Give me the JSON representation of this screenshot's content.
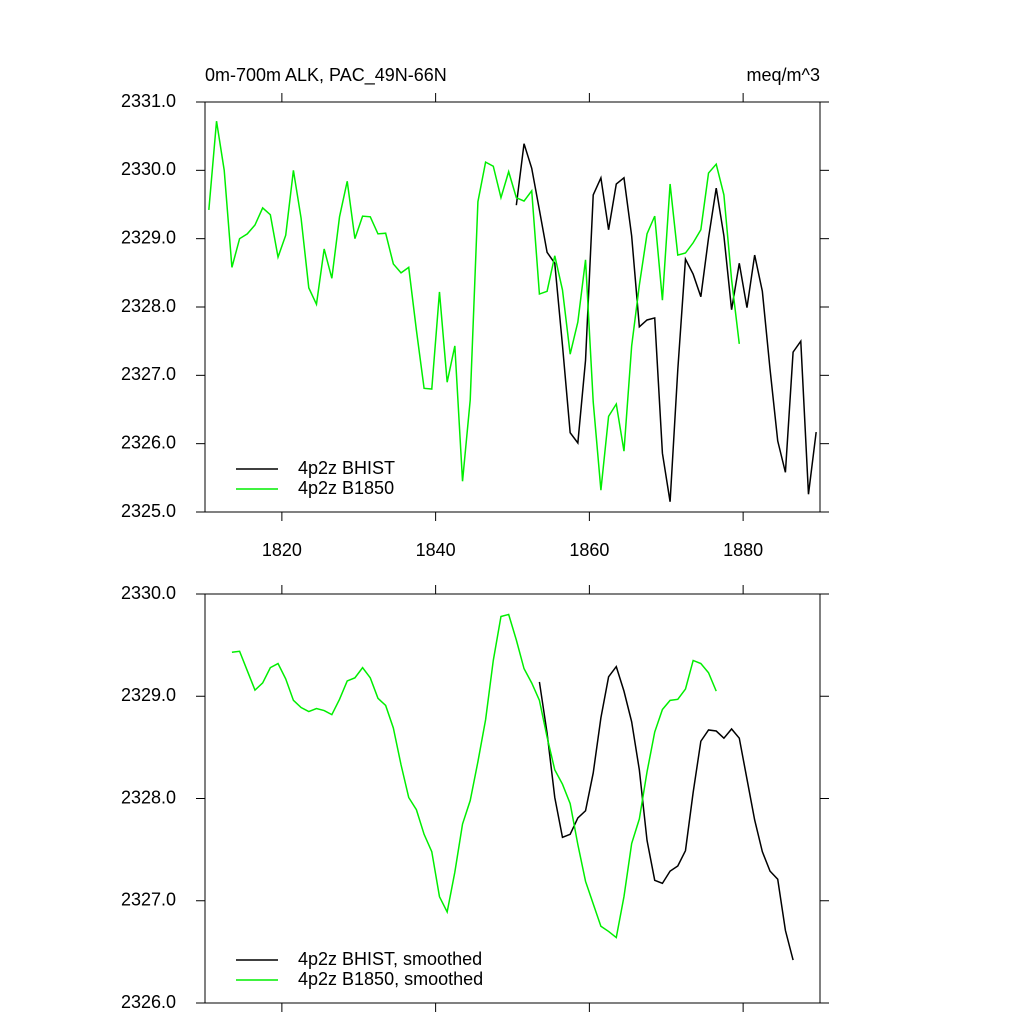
{
  "chart_data": [
    {
      "type": "line",
      "title": "0m-700m ALK, PAC_49N-66N",
      "unit_label": "meq/m^3",
      "xlim": [
        1810,
        1890
      ],
      "xticks": [
        1820,
        1840,
        1860,
        1880
      ],
      "ylim": [
        2325,
        2331
      ],
      "yticks": [
        {
          "value": 2325,
          "label": "2325.0"
        },
        {
          "value": 2326,
          "label": "2326.0"
        },
        {
          "value": 2327,
          "label": "2327.0"
        },
        {
          "value": 2328,
          "label": "2328.0"
        },
        {
          "value": 2329,
          "label": "2329.0"
        },
        {
          "value": 2330,
          "label": "2330.0"
        },
        {
          "value": 2331,
          "label": "2331.0"
        }
      ],
      "legend_position": "lower left",
      "series": [
        {
          "name": "4p2z BHIST",
          "color": "#000000",
          "x": [
            1850.5,
            1851.5,
            1852.5,
            1853.5,
            1854.5,
            1855.5,
            1856.5,
            1857.5,
            1858.5,
            1859.5,
            1860.5,
            1861.5,
            1862.5,
            1863.5,
            1864.5,
            1865.5,
            1866.5,
            1867.5,
            1868.5,
            1869.5,
            1870.5,
            1871.5,
            1872.5,
            1873.5,
            1874.5,
            1875.5,
            1876.5,
            1877.5,
            1878.5,
            1879.5,
            1880.5,
            1881.5,
            1882.5,
            1883.5,
            1884.5,
            1885.5,
            1886.5,
            1887.5,
            1888.5,
            1889.5
          ],
          "values": [
            2329.49,
            2330.39,
            2330.03,
            2329.42,
            2328.8,
            2328.64,
            2327.44,
            2326.16,
            2326.01,
            2327.22,
            2329.64,
            2329.89,
            2329.13,
            2329.8,
            2329.89,
            2329.04,
            2327.71,
            2327.81,
            2327.84,
            2325.86,
            2325.15,
            2327.08,
            2328.7,
            2328.48,
            2328.15,
            2329.01,
            2329.74,
            2329.04,
            2327.96,
            2328.64,
            2327.99,
            2328.76,
            2328.23,
            2327.09,
            2326.04,
            2325.58,
            2327.34,
            2327.5,
            2325.26,
            2326.17
          ]
        },
        {
          "name": "4p2z B1850",
          "color": "#00ee00",
          "x": [
            1810.5,
            1811.5,
            1812.5,
            1813.5,
            1814.5,
            1815.5,
            1816.5,
            1817.5,
            1818.5,
            1819.5,
            1820.5,
            1821.5,
            1822.5,
            1823.5,
            1824.5,
            1825.5,
            1826.5,
            1827.5,
            1828.5,
            1829.5,
            1830.5,
            1831.5,
            1832.5,
            1833.5,
            1834.5,
            1835.5,
            1836.5,
            1837.5,
            1838.5,
            1839.5,
            1840.5,
            1841.5,
            1842.5,
            1843.5,
            1844.5,
            1845.5,
            1846.5,
            1847.5,
            1848.5,
            1849.5,
            1850.5,
            1851.5,
            1852.5,
            1853.5,
            1854.5,
            1855.5,
            1856.5,
            1857.5,
            1858.5,
            1859.5,
            1860.5,
            1861.5,
            1862.5,
            1863.5,
            1864.5,
            1865.5,
            1866.5,
            1867.5,
            1868.5,
            1869.5,
            1870.5,
            1871.5,
            1872.5,
            1873.5,
            1874.5,
            1875.5,
            1876.5,
            1877.5,
            1878.5,
            1879.5
          ],
          "values": [
            2329.42,
            2330.72,
            2330.0,
            2328.58,
            2329.0,
            2329.07,
            2329.2,
            2329.45,
            2329.35,
            2328.73,
            2329.05,
            2330.0,
            2329.3,
            2328.28,
            2328.04,
            2328.85,
            2328.42,
            2329.32,
            2329.84,
            2329.0,
            2329.33,
            2329.32,
            2329.07,
            2329.08,
            2328.63,
            2328.5,
            2328.58,
            2327.66,
            2326.81,
            2326.8,
            2328.22,
            2326.9,
            2327.43,
            2325.45,
            2326.64,
            2329.54,
            2330.12,
            2330.06,
            2329.6,
            2329.98,
            2329.6,
            2329.55,
            2329.7,
            2328.19,
            2328.23,
            2328.75,
            2328.25,
            2327.31,
            2327.78,
            2328.69,
            2326.61,
            2325.32,
            2326.4,
            2326.58,
            2325.89,
            2327.43,
            2328.32,
            2329.07,
            2329.33,
            2328.1,
            2329.8,
            2328.76,
            2328.79,
            2328.94,
            2329.13,
            2329.96,
            2330.09,
            2329.64,
            2328.4,
            2327.46
          ]
        }
      ]
    },
    {
      "type": "line",
      "xlim": [
        1810,
        1890
      ],
      "xticks": [
        1820,
        1840,
        1860,
        1880
      ],
      "ylim": [
        2326,
        2330
      ],
      "yticks": [
        {
          "value": 2326,
          "label": "2326.0"
        },
        {
          "value": 2327,
          "label": "2327.0"
        },
        {
          "value": 2328,
          "label": "2328.0"
        },
        {
          "value": 2329,
          "label": "2329.0"
        },
        {
          "value": 2330,
          "label": "2330.0"
        }
      ],
      "legend_position": "lower left",
      "series": [
        {
          "name": "4p2z BHIST, smoothed",
          "color": "#000000",
          "x": [
            1853.5,
            1854.5,
            1855.5,
            1856.5,
            1857.5,
            1858.5,
            1859.5,
            1860.5,
            1861.5,
            1862.5,
            1863.5,
            1864.5,
            1865.5,
            1866.5,
            1867.5,
            1868.5,
            1869.5,
            1870.5,
            1871.5,
            1872.5,
            1873.5,
            1874.5,
            1875.5,
            1876.5,
            1877.5,
            1878.5,
            1879.5,
            1880.5,
            1881.5,
            1882.5,
            1883.5,
            1884.5,
            1885.5,
            1886.5
          ],
          "values": [
            2329.14,
            2328.64,
            2328.01,
            2327.62,
            2327.65,
            2327.81,
            2327.88,
            2328.25,
            2328.79,
            2329.19,
            2329.29,
            2329.05,
            2328.75,
            2328.28,
            2327.59,
            2327.2,
            2327.17,
            2327.29,
            2327.34,
            2327.49,
            2328.06,
            2328.56,
            2328.67,
            2328.66,
            2328.59,
            2328.68,
            2328.59,
            2328.19,
            2327.79,
            2327.48,
            2327.29,
            2327.21,
            2326.71,
            2326.42
          ]
        },
        {
          "name": "4p2z B1850, smoothed",
          "color": "#00ee00",
          "x": [
            1813.5,
            1814.5,
            1815.5,
            1816.5,
            1817.5,
            1818.5,
            1819.5,
            1820.5,
            1821.5,
            1822.5,
            1823.5,
            1824.5,
            1825.5,
            1826.5,
            1827.5,
            1828.5,
            1829.5,
            1830.5,
            1831.5,
            1832.5,
            1833.5,
            1834.5,
            1835.5,
            1836.5,
            1837.5,
            1838.5,
            1839.5,
            1840.5,
            1841.5,
            1842.5,
            1843.5,
            1844.5,
            1845.5,
            1846.5,
            1847.5,
            1848.5,
            1849.5,
            1850.5,
            1851.5,
            1852.5,
            1853.5,
            1854.5,
            1855.5,
            1856.5,
            1857.5,
            1858.5,
            1859.5,
            1860.5,
            1861.5,
            1862.5,
            1863.5,
            1864.5,
            1865.5,
            1866.5,
            1867.5,
            1868.5,
            1869.5,
            1870.5,
            1871.5,
            1872.5,
            1873.5,
            1874.5,
            1875.5,
            1876.5
          ],
          "values": [
            2329.43,
            2329.44,
            2329.25,
            2329.06,
            2329.13,
            2329.28,
            2329.32,
            2329.17,
            2328.96,
            2328.89,
            2328.85,
            2328.88,
            2328.86,
            2328.82,
            2328.97,
            2329.15,
            2329.18,
            2329.28,
            2329.18,
            2328.98,
            2328.91,
            2328.69,
            2328.33,
            2328.01,
            2327.89,
            2327.65,
            2327.48,
            2327.04,
            2326.89,
            2327.28,
            2327.75,
            2327.98,
            2328.36,
            2328.77,
            2329.35,
            2329.78,
            2329.8,
            2329.55,
            2329.27,
            2329.13,
            2328.96,
            2328.6,
            2328.28,
            2328.14,
            2327.95,
            2327.55,
            2327.19,
            2326.97,
            2326.75,
            2326.7,
            2326.64,
            2327.04,
            2327.56,
            2327.8,
            2328.26,
            2328.65,
            2328.87,
            2328.96,
            2328.97,
            2329.07,
            2329.35,
            2329.32,
            2329.23,
            2329.05
          ]
        }
      ]
    }
  ]
}
